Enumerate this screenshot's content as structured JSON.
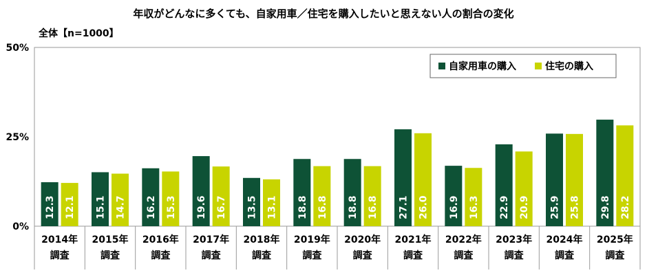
{
  "chart_data": {
    "type": "bar",
    "title": "年収がどんなに多くても、自家用車／住宅を購入したいと思えない人の割合の変化",
    "subtitle": "全体【n=1000】",
    "categories": [
      [
        "2014年",
        "調査"
      ],
      [
        "2015年",
        "調査"
      ],
      [
        "2016年",
        "調査"
      ],
      [
        "2017年",
        "調査"
      ],
      [
        "2018年",
        "調査"
      ],
      [
        "2019年",
        "調査"
      ],
      [
        "2020年",
        "調査"
      ],
      [
        "2021年",
        "調査"
      ],
      [
        "2022年",
        "調査"
      ],
      [
        "2023年",
        "調査"
      ],
      [
        "2024年",
        "調査"
      ],
      [
        "2025年",
        "調査"
      ]
    ],
    "series": [
      {
        "name": "自家用車の購入",
        "color": "#0e5236",
        "values": [
          12.3,
          15.1,
          16.2,
          19.6,
          13.5,
          18.8,
          18.8,
          27.1,
          16.9,
          22.9,
          25.9,
          29.8
        ]
      },
      {
        "name": "住宅の購入",
        "color": "#c8d400",
        "values": [
          12.1,
          14.7,
          15.3,
          16.7,
          13.1,
          16.8,
          16.8,
          26.0,
          16.3,
          20.9,
          25.8,
          28.2
        ]
      }
    ],
    "value_format": "0.0",
    "ylim": [
      0,
      50
    ],
    "yticks": [
      "0%",
      "25%",
      "50%"
    ],
    "ytick_values": [
      0,
      25,
      50
    ],
    "grid": false,
    "legend_position": "top-right"
  }
}
